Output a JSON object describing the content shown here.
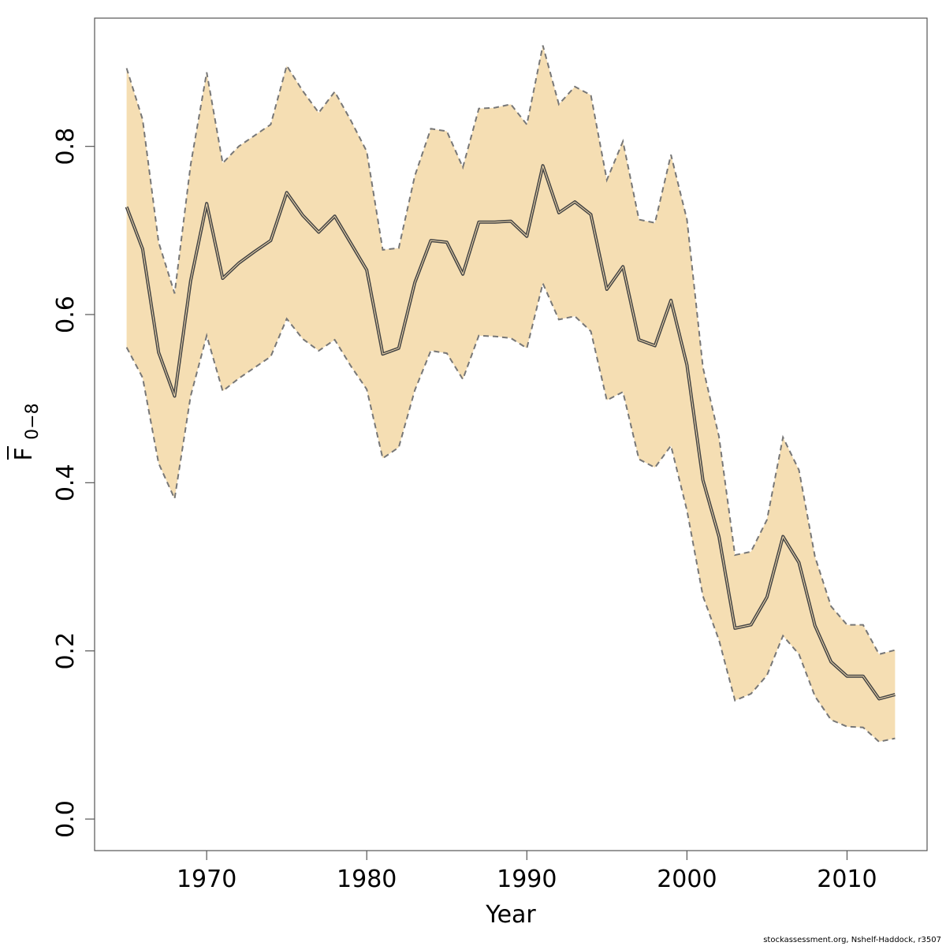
{
  "chart_data": {
    "type": "area",
    "title": "",
    "xlabel": "Year",
    "ylabel_main": "F",
    "ylabel_subscript": "0−8",
    "xlim": [
      1963.0,
      2015.0
    ],
    "ylim": [
      -0.0375,
      0.9525
    ],
    "x_ticks": [
      1970,
      1980,
      1990,
      2000,
      2010
    ],
    "y_ticks": [
      0.0,
      0.2,
      0.4,
      0.6,
      0.8
    ],
    "y_tick_labels": [
      "0.0",
      "0.2",
      "0.4",
      "0.6",
      "0.8"
    ],
    "grid": false,
    "colors": {
      "band": "#f5deb3",
      "line": "#444444",
      "bound": "#777777",
      "frame": "#555555"
    },
    "x": [
      1965,
      1966,
      1967,
      1968,
      1969,
      1970,
      1971,
      1972,
      1973,
      1974,
      1975,
      1976,
      1977,
      1978,
      1979,
      1980,
      1981,
      1982,
      1983,
      1984,
      1985,
      1986,
      1987,
      1988,
      1989,
      1990,
      1991,
      1992,
      1993,
      1994,
      1995,
      1996,
      1997,
      1998,
      1999,
      2000,
      2001,
      2002,
      2003,
      2004,
      2005,
      2006,
      2007,
      2008,
      2009,
      2010,
      2011,
      2012,
      2013
    ],
    "series": [
      {
        "role": "estimate",
        "values": [
          0.728,
          0.678,
          0.555,
          0.503,
          0.64,
          0.732,
          0.643,
          0.661,
          0.675,
          0.688,
          0.745,
          0.718,
          0.698,
          0.717,
          0.685,
          0.653,
          0.553,
          0.56,
          0.638,
          0.688,
          0.686,
          0.648,
          0.71,
          0.71,
          0.711,
          0.693,
          0.777,
          0.721,
          0.734,
          0.719,
          0.63,
          0.657,
          0.57,
          0.563,
          0.617,
          0.54,
          0.403,
          0.336,
          0.227,
          0.231,
          0.264,
          0.336,
          0.305,
          0.23,
          0.187,
          0.17,
          0.17,
          0.143,
          0.148
        ]
      },
      {
        "role": "upper",
        "values": [
          0.893,
          0.832,
          0.686,
          0.625,
          0.778,
          0.888,
          0.78,
          0.8,
          0.813,
          0.826,
          0.896,
          0.866,
          0.84,
          0.865,
          0.831,
          0.794,
          0.677,
          0.679,
          0.765,
          0.821,
          0.818,
          0.775,
          0.845,
          0.846,
          0.85,
          0.826,
          0.92,
          0.85,
          0.871,
          0.861,
          0.76,
          0.806,
          0.713,
          0.709,
          0.79,
          0.713,
          0.537,
          0.455,
          0.314,
          0.318,
          0.356,
          0.454,
          0.415,
          0.312,
          0.253,
          0.231,
          0.231,
          0.196,
          0.201
        ]
      },
      {
        "role": "lower",
        "values": [
          0.561,
          0.525,
          0.423,
          0.381,
          0.503,
          0.575,
          0.509,
          0.524,
          0.537,
          0.55,
          0.595,
          0.571,
          0.557,
          0.57,
          0.539,
          0.511,
          0.429,
          0.442,
          0.51,
          0.557,
          0.554,
          0.523,
          0.575,
          0.574,
          0.572,
          0.56,
          0.637,
          0.594,
          0.598,
          0.58,
          0.498,
          0.508,
          0.428,
          0.418,
          0.444,
          0.367,
          0.265,
          0.213,
          0.141,
          0.149,
          0.171,
          0.218,
          0.196,
          0.146,
          0.118,
          0.11,
          0.109,
          0.092,
          0.096
        ]
      }
    ]
  },
  "footer": "stockassessment.org, Nshelf-Haddock, r3507"
}
